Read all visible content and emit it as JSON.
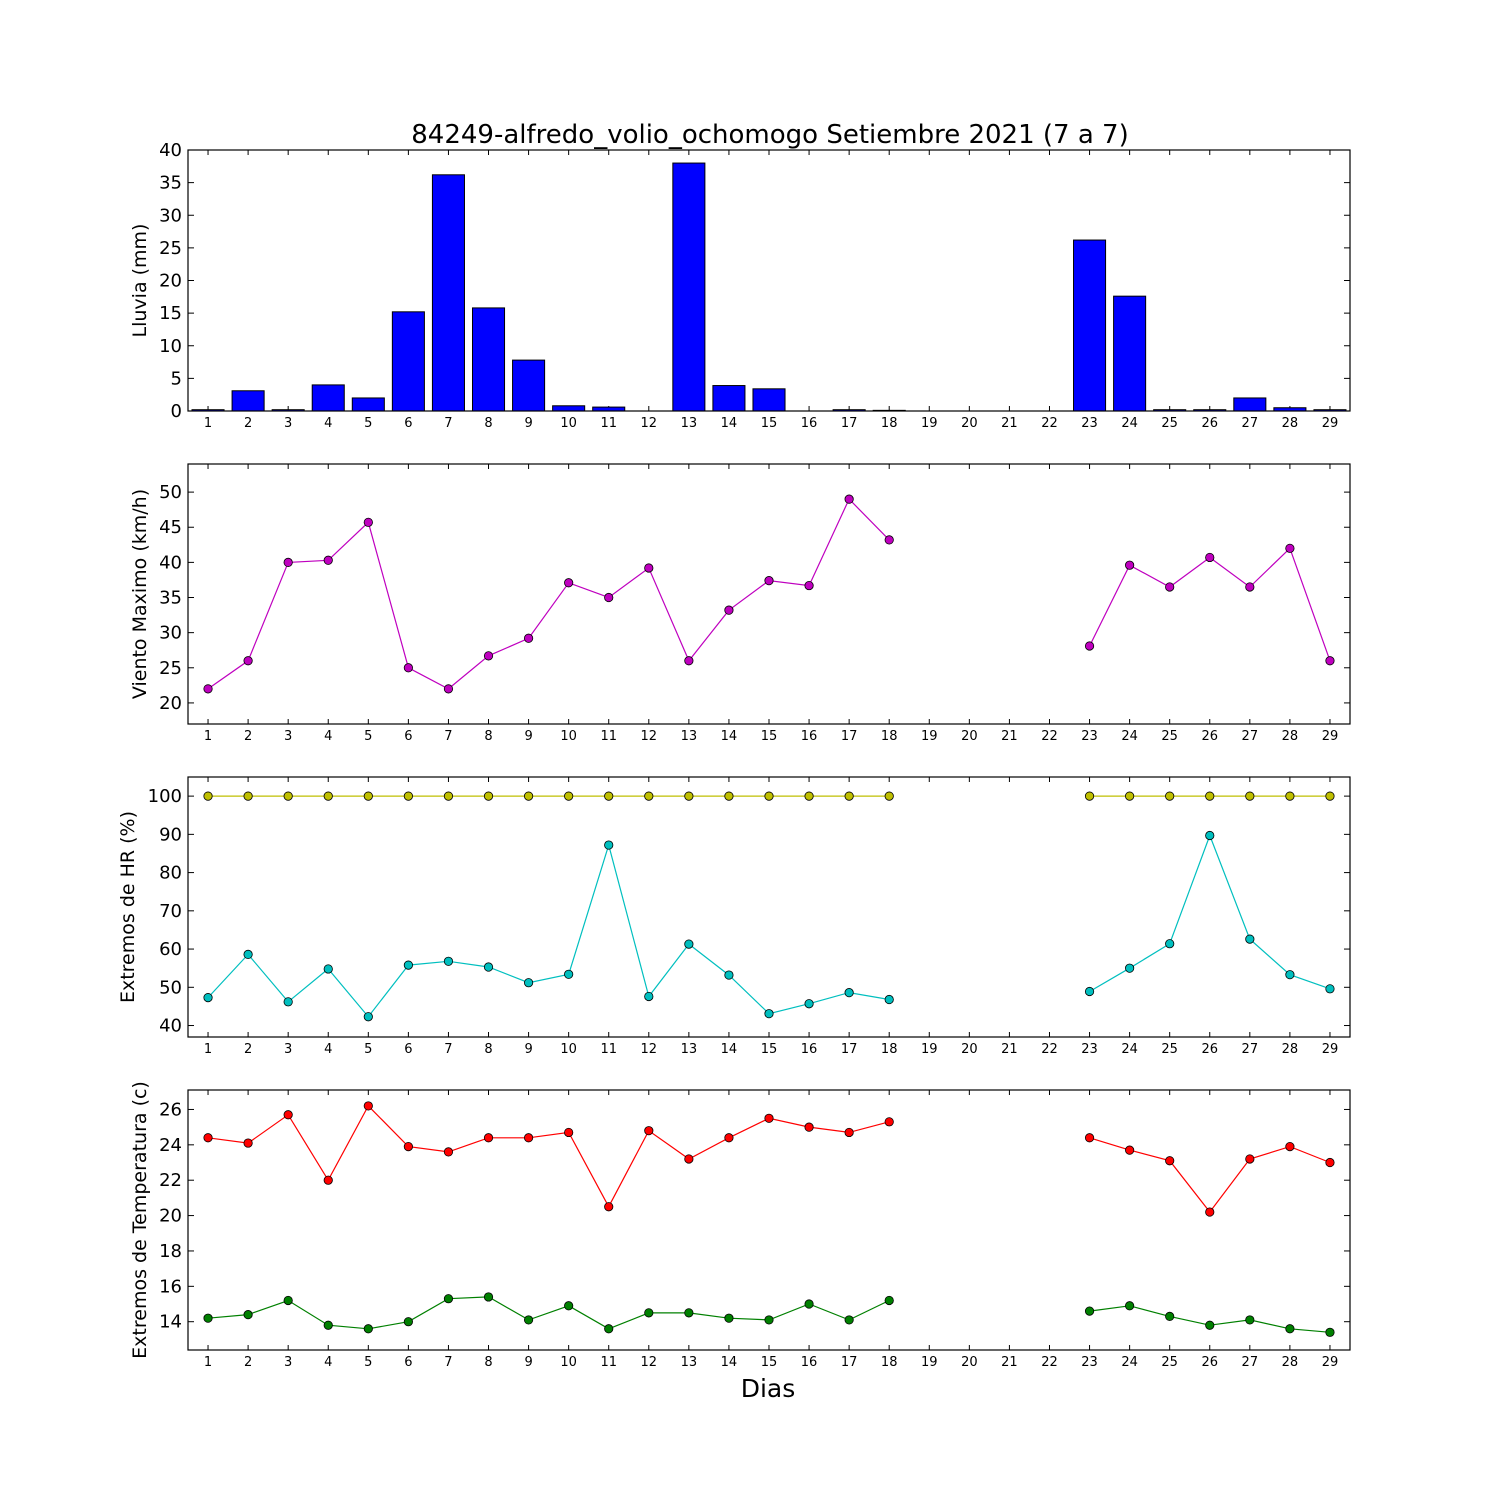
{
  "figure": {
    "title": "84249-alfredo_volio_ochomogo Setiembre 2021  (7 a 7)",
    "xlabel": "Dias"
  },
  "chart_data": [
    {
      "type": "bar",
      "id": "rain",
      "ylabel": "Lluvia (mm)",
      "ylim": [
        0,
        40
      ],
      "yticks": [
        0,
        5,
        10,
        15,
        20,
        25,
        30,
        35,
        40
      ],
      "xlim": [
        0.5,
        29.5
      ],
      "categories": [
        1,
        2,
        3,
        4,
        5,
        6,
        7,
        8,
        9,
        10,
        11,
        12,
        13,
        14,
        15,
        16,
        17,
        18,
        19,
        20,
        21,
        22,
        23,
        24,
        25,
        26,
        27,
        28,
        29
      ],
      "series": [
        {
          "color": "#0000ff",
          "values": [
            0.2,
            3.1,
            0.2,
            4.0,
            2.0,
            15.2,
            36.2,
            15.8,
            7.8,
            0.8,
            0.6,
            0,
            38.0,
            3.9,
            3.4,
            0,
            0.2,
            0.1,
            0,
            0,
            0,
            0,
            26.2,
            17.6,
            0.2,
            0.2,
            2.0,
            0.5,
            0.2
          ]
        }
      ]
    },
    {
      "type": "line",
      "id": "wind",
      "ylabel": "Viento Maximo (km/h)",
      "ylim": [
        17,
        54
      ],
      "yticks": [
        20,
        25,
        30,
        35,
        40,
        45,
        50
      ],
      "xlim": [
        0.5,
        29.5
      ],
      "x": [
        1,
        2,
        3,
        4,
        5,
        6,
        7,
        8,
        9,
        10,
        11,
        12,
        13,
        14,
        15,
        16,
        17,
        18,
        19,
        20,
        21,
        22,
        23,
        24,
        25,
        26,
        27,
        28,
        29
      ],
      "series": [
        {
          "color": "#bf00bf",
          "values": [
            22.0,
            26.0,
            40.0,
            40.3,
            45.7,
            25.0,
            22.0,
            26.7,
            29.2,
            37.1,
            35.0,
            39.2,
            26.0,
            33.2,
            37.4,
            36.7,
            49.0,
            43.2,
            null,
            null,
            null,
            null,
            28.1,
            39.6,
            36.5,
            40.7,
            36.5,
            42.0,
            26.0
          ]
        }
      ]
    },
    {
      "type": "line",
      "id": "humidity",
      "ylabel": "Extremos de HR (%)",
      "ylim": [
        37,
        105
      ],
      "yticks": [
        40,
        50,
        60,
        70,
        80,
        90,
        100
      ],
      "xlim": [
        0.5,
        29.5
      ],
      "x": [
        1,
        2,
        3,
        4,
        5,
        6,
        7,
        8,
        9,
        10,
        11,
        12,
        13,
        14,
        15,
        16,
        17,
        18,
        19,
        20,
        21,
        22,
        23,
        24,
        25,
        26,
        27,
        28,
        29
      ],
      "series": [
        {
          "color": "#bfbf00",
          "values": [
            100,
            100,
            100,
            100,
            100,
            100,
            100,
            100,
            100,
            100,
            100,
            100,
            100,
            100,
            100,
            100,
            100,
            100,
            null,
            null,
            null,
            null,
            100,
            100,
            100,
            100,
            100,
            100,
            100
          ]
        },
        {
          "color": "#00bfbf",
          "values": [
            47.3,
            58.6,
            46.2,
            54.8,
            42.3,
            55.8,
            56.8,
            55.3,
            51.2,
            53.4,
            87.2,
            47.6,
            61.3,
            53.2,
            43.1,
            45.7,
            48.6,
            46.8,
            null,
            null,
            null,
            null,
            48.9,
            55.0,
            61.4,
            89.7,
            62.6,
            53.3,
            49.6
          ]
        }
      ]
    },
    {
      "type": "line",
      "id": "temperature",
      "ylabel": "Extremos de Temperatura (c)",
      "ylim": [
        12.4,
        27.1
      ],
      "yticks": [
        14,
        16,
        18,
        20,
        22,
        24,
        26
      ],
      "xlim": [
        0.5,
        29.5
      ],
      "x": [
        1,
        2,
        3,
        4,
        5,
        6,
        7,
        8,
        9,
        10,
        11,
        12,
        13,
        14,
        15,
        16,
        17,
        18,
        19,
        20,
        21,
        22,
        23,
        24,
        25,
        26,
        27,
        28,
        29
      ],
      "series": [
        {
          "color": "#ff0000",
          "values": [
            24.4,
            24.1,
            25.7,
            22.0,
            26.2,
            23.9,
            23.6,
            24.4,
            24.4,
            24.7,
            20.5,
            24.8,
            23.2,
            24.4,
            25.5,
            25.0,
            24.7,
            25.3,
            null,
            null,
            null,
            null,
            24.4,
            23.7,
            23.1,
            20.2,
            23.2,
            23.9,
            23.0
          ]
        },
        {
          "color": "#008000",
          "values": [
            14.2,
            14.4,
            15.2,
            13.8,
            13.6,
            14.0,
            15.3,
            15.4,
            14.1,
            14.9,
            13.6,
            14.5,
            14.5,
            14.2,
            14.1,
            15.0,
            14.1,
            15.2,
            null,
            null,
            null,
            null,
            14.6,
            14.9,
            14.3,
            13.8,
            14.1,
            13.6,
            13.4
          ]
        }
      ]
    }
  ]
}
